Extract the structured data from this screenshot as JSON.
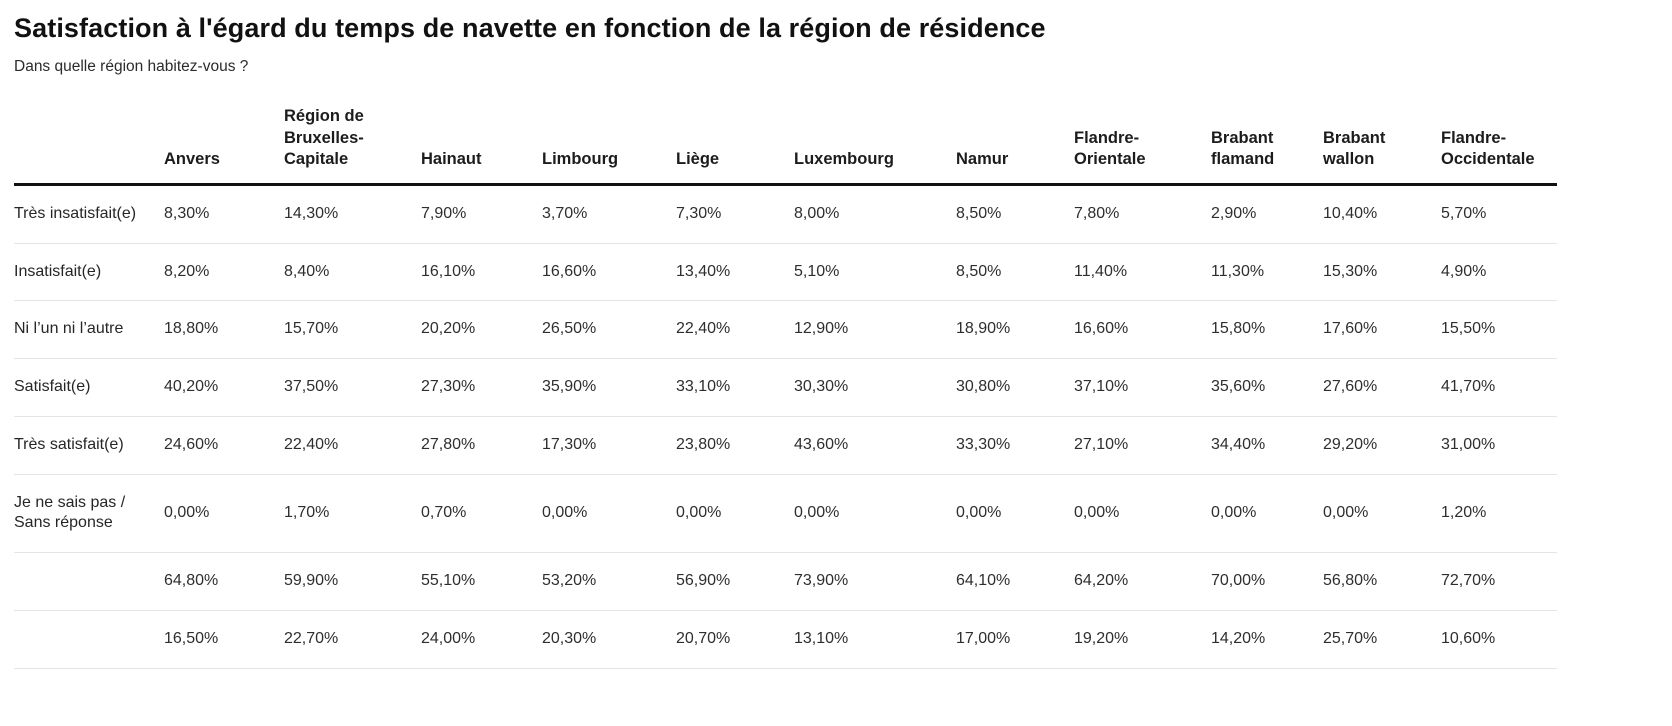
{
  "page": {
    "title": "Satisfaction à l'égard du temps de navette en fonction de la région de résidence",
    "subtitle": "Dans quelle région habitez-vous ?"
  },
  "table": {
    "columns": [
      "Anvers",
      "Région de Bruxelles-Capitale",
      "Hainaut",
      "Limbourg",
      "Liège",
      "Luxembourg",
      "Namur",
      "Flandre-Orientale",
      "Brabant flamand",
      "Brabant wallon",
      "Flandre-Occidentale"
    ],
    "rows": [
      {
        "label": "Très insatisfait(e)",
        "values": [
          "8,30%",
          "14,30%",
          "7,90%",
          "3,70%",
          "7,30%",
          "8,00%",
          "8,50%",
          "7,80%",
          "2,90%",
          "10,40%",
          "5,70%"
        ]
      },
      {
        "label": "Insatisfait(e)",
        "values": [
          "8,20%",
          "8,40%",
          "16,10%",
          "16,60%",
          "13,40%",
          "5,10%",
          "8,50%",
          "11,40%",
          "11,30%",
          "15,30%",
          "4,90%"
        ]
      },
      {
        "label": "Ni l’un ni l’autre",
        "values": [
          "18,80%",
          "15,70%",
          "20,20%",
          "26,50%",
          "22,40%",
          "12,90%",
          "18,90%",
          "16,60%",
          "15,80%",
          "17,60%",
          "15,50%"
        ]
      },
      {
        "label": "Satisfait(e)",
        "values": [
          "40,20%",
          "37,50%",
          "27,30%",
          "35,90%",
          "33,10%",
          "30,30%",
          "30,80%",
          "37,10%",
          "35,60%",
          "27,60%",
          "41,70%"
        ]
      },
      {
        "label": "Très satisfait(e)",
        "values": [
          "24,60%",
          "22,40%",
          "27,80%",
          "17,30%",
          "23,80%",
          "43,60%",
          "33,30%",
          "27,10%",
          "34,40%",
          "29,20%",
          "31,00%"
        ]
      },
      {
        "label": "Je ne sais pas / Sans réponse",
        "values": [
          "0,00%",
          "1,70%",
          "0,70%",
          "0,00%",
          "0,00%",
          "0,00%",
          "0,00%",
          "0,00%",
          "0,00%",
          "0,00%",
          "1,20%"
        ]
      },
      {
        "label": "",
        "values": [
          "64,80%",
          "59,90%",
          "55,10%",
          "53,20%",
          "56,90%",
          "73,90%",
          "64,10%",
          "64,20%",
          "70,00%",
          "56,80%",
          "72,70%"
        ]
      },
      {
        "label": "",
        "values": [
          "16,50%",
          "22,70%",
          "24,00%",
          "20,30%",
          "20,70%",
          "13,10%",
          "17,00%",
          "19,20%",
          "14,20%",
          "25,70%",
          "10,60%"
        ]
      }
    ]
  },
  "chart_data": {
    "type": "table",
    "title": "Satisfaction à l'égard du temps de navette en fonction de la région de résidence",
    "subtitle": "Dans quelle région habitez-vous ?",
    "unit": "percent",
    "categories": [
      "Anvers",
      "Région de Bruxelles-Capitale",
      "Hainaut",
      "Limbourg",
      "Liège",
      "Luxembourg",
      "Namur",
      "Flandre-Orientale",
      "Brabant flamand",
      "Brabant wallon",
      "Flandre-Occidentale"
    ],
    "series": [
      {
        "name": "Très insatisfait(e)",
        "values": [
          8.3,
          14.3,
          7.9,
          3.7,
          7.3,
          8.0,
          8.5,
          7.8,
          2.9,
          10.4,
          5.7
        ]
      },
      {
        "name": "Insatisfait(e)",
        "values": [
          8.2,
          8.4,
          16.1,
          16.6,
          13.4,
          5.1,
          8.5,
          11.4,
          11.3,
          15.3,
          4.9
        ]
      },
      {
        "name": "Ni l’un ni l’autre",
        "values": [
          18.8,
          15.7,
          20.2,
          26.5,
          22.4,
          12.9,
          18.9,
          16.6,
          15.8,
          17.6,
          15.5
        ]
      },
      {
        "name": "Satisfait(e)",
        "values": [
          40.2,
          37.5,
          27.3,
          35.9,
          33.1,
          30.3,
          30.8,
          37.1,
          35.6,
          27.6,
          41.7
        ]
      },
      {
        "name": "Très satisfait(e)",
        "values": [
          24.6,
          22.4,
          27.8,
          17.3,
          23.8,
          43.6,
          33.3,
          27.1,
          34.4,
          29.2,
          31.0
        ]
      },
      {
        "name": "Je ne sais pas / Sans réponse",
        "values": [
          0.0,
          1.7,
          0.7,
          0.0,
          0.0,
          0.0,
          0.0,
          0.0,
          0.0,
          0.0,
          1.2
        ]
      },
      {
        "name": "",
        "values": [
          64.8,
          59.9,
          55.1,
          53.2,
          56.9,
          73.9,
          64.1,
          64.2,
          70.0,
          56.8,
          72.7
        ]
      },
      {
        "name": "",
        "values": [
          16.5,
          22.7,
          24.0,
          20.3,
          20.7,
          13.1,
          17.0,
          19.2,
          14.2,
          25.7,
          10.6
        ]
      }
    ]
  }
}
